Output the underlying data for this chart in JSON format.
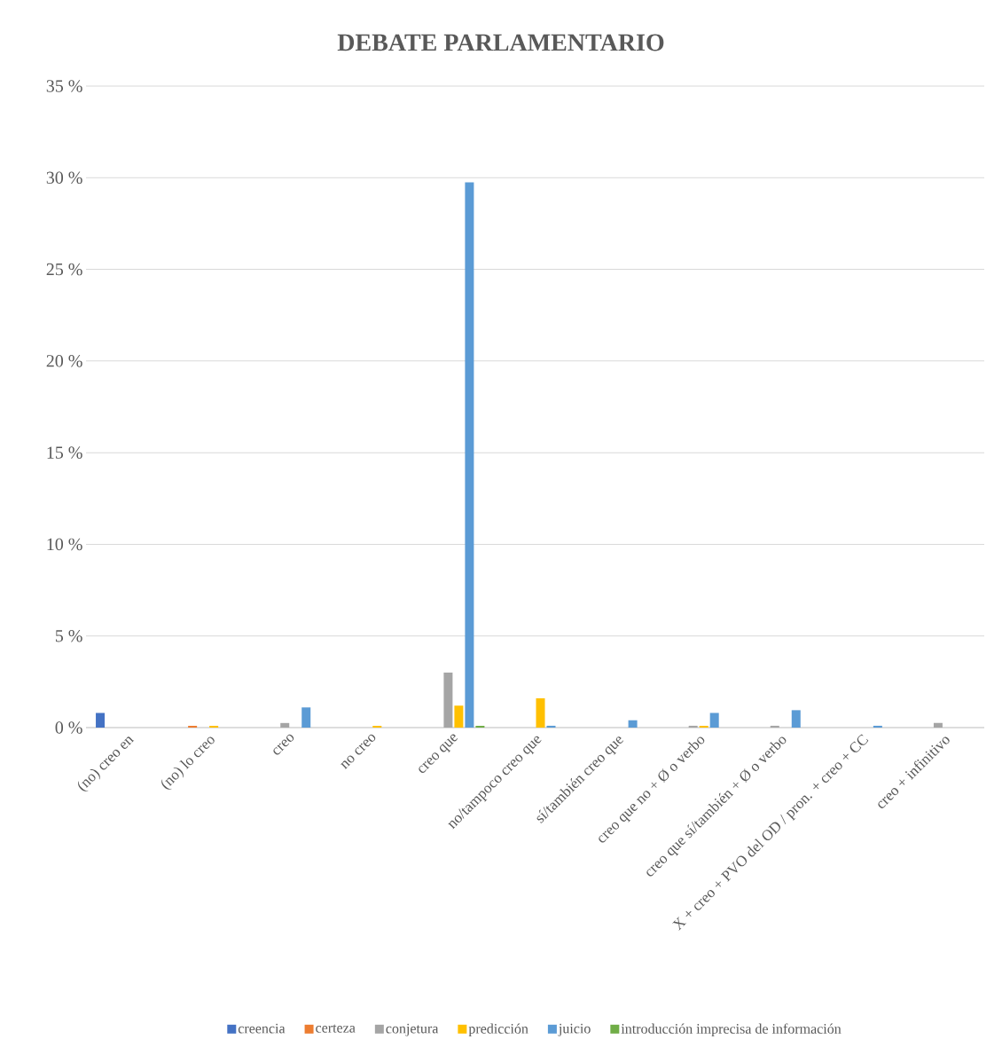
{
  "chart_data": {
    "type": "bar",
    "title": "DEBATE PARLAMENTARIO",
    "categories": [
      "(no) creo en",
      "(no) lo creo",
      "creo",
      "no creo",
      "creo que",
      "no/tampoco creo que",
      "sí/también creo que",
      "creo que no + Ø o verbo",
      "creo que sí/también +  Ø o verbo",
      "X + creo + PVO del OD / pron. + creo + CC",
      "creo + infinitivo"
    ],
    "series": [
      {
        "name": "creencia",
        "color": "#4472c4",
        "values": [
          0.8,
          0,
          0,
          0,
          0,
          0,
          0,
          0,
          0,
          0,
          0
        ]
      },
      {
        "name": "certeza",
        "color": "#ed7d31",
        "values": [
          0,
          0.1,
          0,
          0,
          0,
          0,
          0,
          0,
          0,
          0,
          0
        ]
      },
      {
        "name": "conjetura",
        "color": "#a5a5a5",
        "values": [
          0,
          0,
          0.25,
          0,
          3.0,
          0,
          0,
          0.1,
          0.1,
          0,
          0.25
        ]
      },
      {
        "name": "predicción",
        "color": "#ffc000",
        "values": [
          0,
          0.1,
          0,
          0.1,
          1.2,
          1.6,
          0,
          0.1,
          0,
          0,
          0
        ]
      },
      {
        "name": "juicio",
        "color": "#5b9bd5",
        "values": [
          0,
          0,
          1.1,
          0,
          29.75,
          0.1,
          0.4,
          0.8,
          0.95,
          0.1,
          0
        ]
      },
      {
        "name": "introducción imprecisa de información",
        "color": "#70ad47",
        "values": [
          0,
          0,
          0,
          0,
          0.1,
          0,
          0,
          0,
          0,
          0,
          0
        ]
      }
    ],
    "ylim": [
      0,
      35
    ],
    "yticks": [
      {
        "value": 0,
        "label": "0 %"
      },
      {
        "value": 5,
        "label": "5 %"
      },
      {
        "value": 10,
        "label": "10 %"
      },
      {
        "value": 15,
        "label": "15 %"
      },
      {
        "value": 20,
        "label": "20 %"
      },
      {
        "value": 25,
        "label": "25 %"
      },
      {
        "value": 30,
        "label": "30 %"
      },
      {
        "value": 35,
        "label": "35 %"
      }
    ],
    "grid": "y",
    "legend": "bottom"
  }
}
